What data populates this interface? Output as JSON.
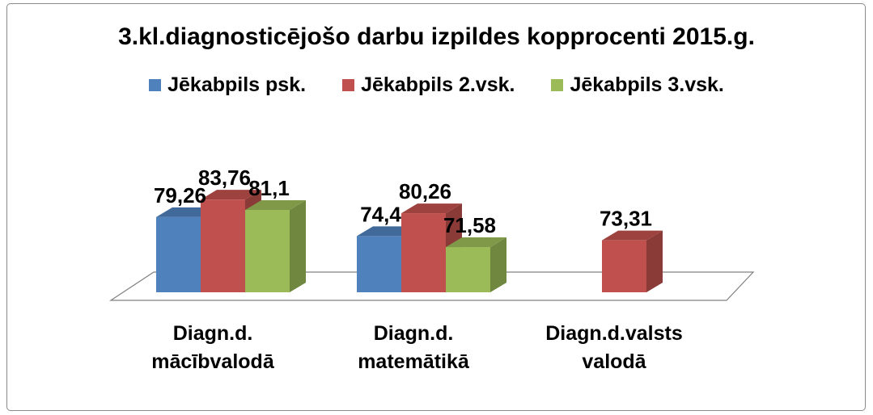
{
  "chart_data": {
    "type": "bar",
    "three_d": true,
    "title": "3.kl.diagnosticējošo darbu izpildes kopprocenti 2015.g.",
    "xlabel": "",
    "ylabel": "",
    "categories": [
      "Diagn.d. mācībvalodā",
      "Diagn.d. matemātikā",
      "Diagn.d.valsts valodā"
    ],
    "series": [
      {
        "name": "Jēkabpils psk.",
        "color": "#4F81BD",
        "values": [
          79.26,
          74.4,
          null
        ],
        "labels": [
          "79,26",
          "74,4",
          null
        ]
      },
      {
        "name": "Jēkabpils 2.vsk.",
        "color": "#C0504D",
        "values": [
          83.76,
          80.26,
          73.31
        ],
        "labels": [
          "83,76",
          "80,26",
          "73,31"
        ]
      },
      {
        "name": "Jēkabpils 3.vsk.",
        "color": "#9BBB59",
        "values": [
          81.1,
          71.58,
          null
        ],
        "labels": [
          "81,1",
          "71,58",
          null
        ]
      }
    ],
    "ylim": [
      60,
      90
    ],
    "value_axis_visible": false,
    "grid": false,
    "legend": "top"
  }
}
